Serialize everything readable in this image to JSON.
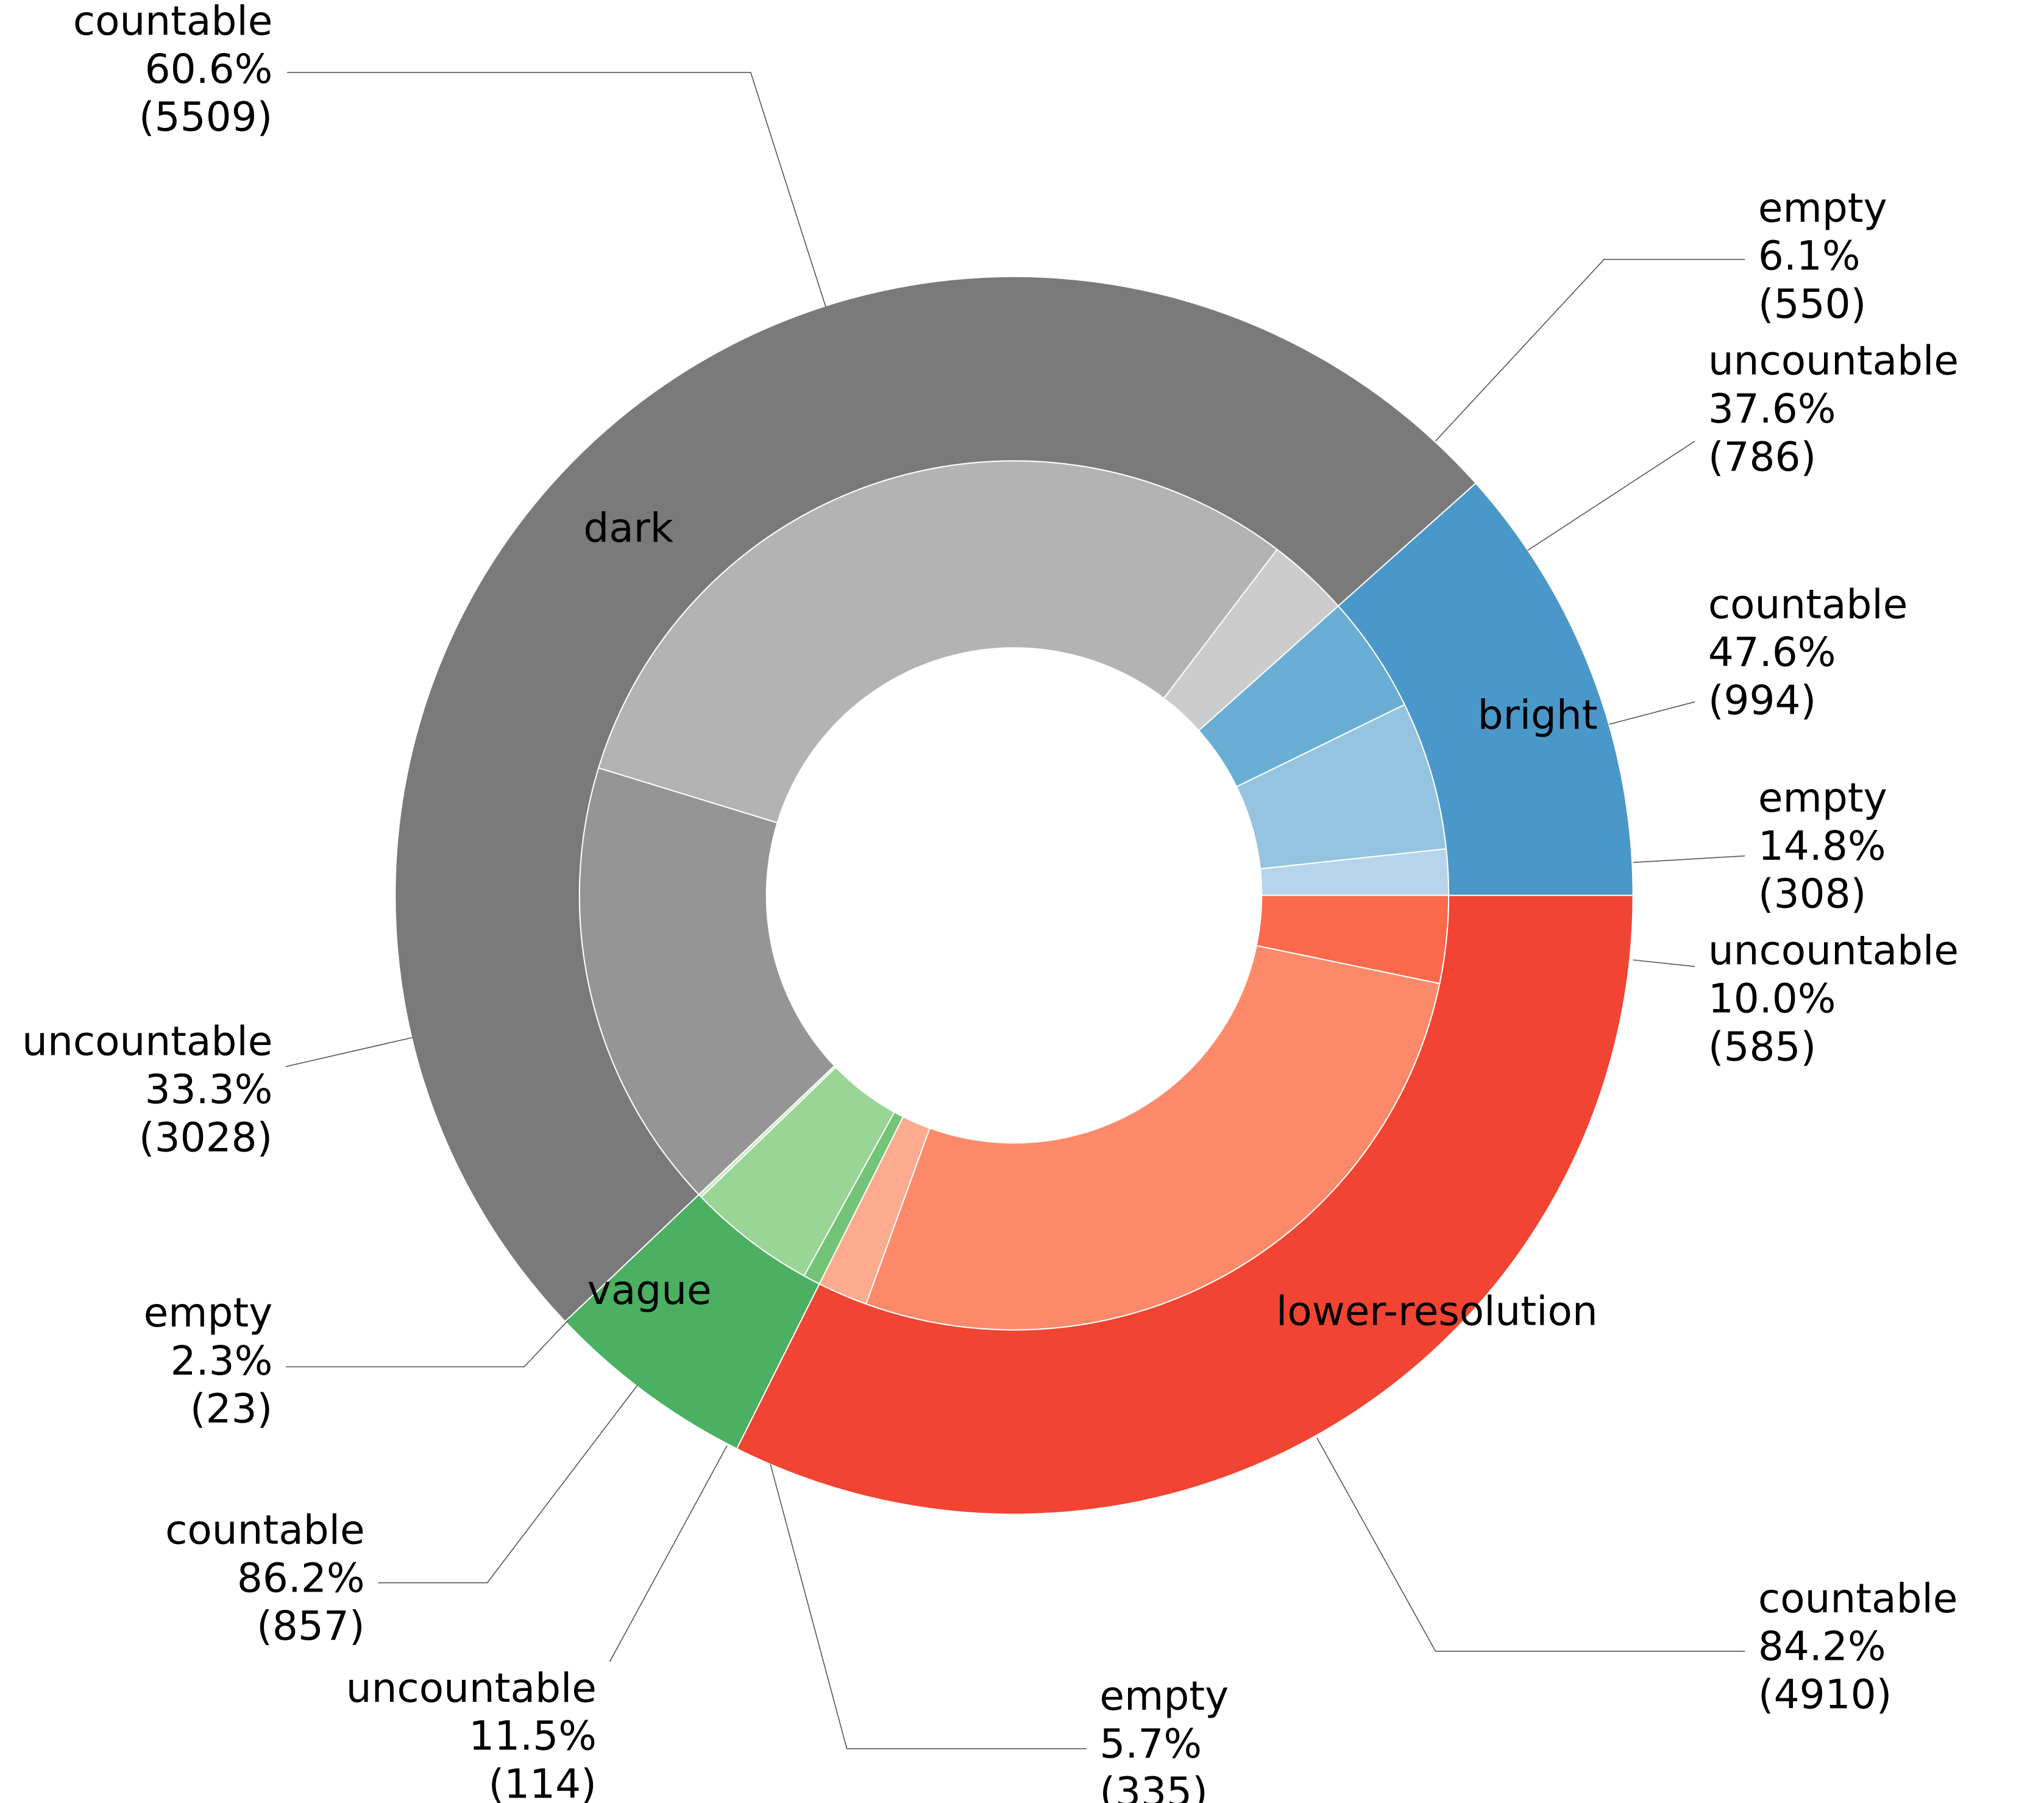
{
  "chart_data": {
    "type": "pie",
    "subtype": "nested-donut",
    "start_angle_deg": 0,
    "direction": "counterclockwise",
    "groups": [
      {
        "name": "bright",
        "color": "#4a98c9",
        "children": [
          {
            "name": "empty",
            "value": 308,
            "pct": "14.8%",
            "color": "#b7d4ea"
          },
          {
            "name": "countable",
            "value": 994,
            "pct": "47.6%",
            "color": "#94c4df"
          },
          {
            "name": "uncountable",
            "value": 786,
            "pct": "37.6%",
            "color": "#6aaed6"
          }
        ]
      },
      {
        "name": "dark",
        "color": "#7a7a7a",
        "children": [
          {
            "name": "empty",
            "value": 550,
            "pct": "6.1%",
            "color": "#cccccc"
          },
          {
            "name": "countable",
            "value": 5509,
            "pct": "60.6%",
            "color": "#b3b3b3"
          },
          {
            "name": "uncountable",
            "value": 3028,
            "pct": "33.3%",
            "color": "#959595"
          }
        ]
      },
      {
        "name": "vague",
        "color": "#4bb062",
        "children": [
          {
            "name": "empty",
            "value": 23,
            "pct": "2.3%",
            "color": "#c7e9c0"
          },
          {
            "name": "countable",
            "value": 857,
            "pct": "86.2%",
            "color": "#99d595"
          },
          {
            "name": "uncountable",
            "value": 114,
            "pct": "11.5%",
            "color": "#73c476"
          }
        ]
      },
      {
        "name": "lower-resolution",
        "color": "#f14432",
        "children": [
          {
            "name": "empty",
            "value": 335,
            "pct": "5.7%",
            "color": "#fcab8f"
          },
          {
            "name": "countable",
            "value": 4910,
            "pct": "84.2%",
            "color": "#fc8a6a"
          },
          {
            "name": "uncountable",
            "value": 585,
            "pct": "10.0%",
            "color": "#fb6a4a"
          }
        ]
      }
    ]
  }
}
